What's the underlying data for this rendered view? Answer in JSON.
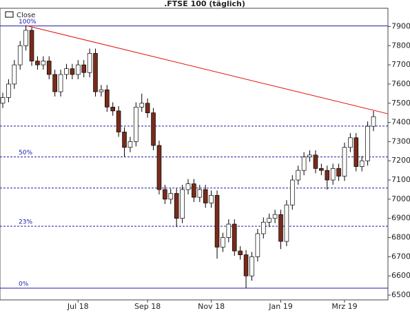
{
  "chart_data": {
    "type": "candlestick",
    "title": ".FTSE 100 (täglich)",
    "name": "Close",
    "categories": [
      null,
      null,
      null,
      null,
      null,
      null,
      null,
      null,
      null,
      null,
      null,
      null,
      null,
      "Jul 18",
      null,
      null,
      null,
      null,
      null,
      null,
      null,
      null,
      null,
      null,
      null,
      "Sep 18",
      null,
      null,
      null,
      null,
      null,
      null,
      null,
      null,
      null,
      null,
      "Nov 18",
      null,
      null,
      null,
      null,
      null,
      null,
      null,
      null,
      null,
      null,
      null,
      "Jan 19",
      null,
      null,
      null,
      null,
      null,
      null,
      null,
      null,
      null,
      null,
      "Mrz 19",
      null,
      null,
      null,
      null,
      null
    ],
    "open": [
      7500,
      7530,
      7600,
      7700,
      7800,
      7880,
      7720,
      7700,
      7720,
      7650,
      7560,
      7650,
      7680,
      7650,
      7700,
      7660,
      7760,
      7560,
      7570,
      7480,
      7460,
      7350,
      7270,
      7300,
      7480,
      7500,
      7450,
      7280,
      7050,
      7000,
      7030,
      6900,
      7050,
      7080,
      7010,
      7050,
      6980,
      7020,
      6750,
      6800,
      6870,
      6730,
      6710,
      6600,
      6700,
      6820,
      6880,
      6900,
      6920,
      6780,
      6970,
      7100,
      7150,
      7220,
      7230,
      7160,
      7150,
      7100,
      7160,
      7120,
      7270,
      7320,
      7170,
      7200,
      7380
    ],
    "high": [
      7555,
      7625,
      7725,
      7825,
      7905,
      7895,
      7745,
      7745,
      7745,
      7675,
      7675,
      7705,
      7705,
      7725,
      7725,
      7785,
      7785,
      7595,
      7595,
      7505,
      7485,
      7375,
      7325,
      7505,
      7550,
      7525,
      7475,
      7305,
      7075,
      7055,
      7055,
      7075,
      7105,
      7105,
      7075,
      7075,
      7045,
      7045,
      6825,
      6895,
      6895,
      6755,
      6735,
      6725,
      6845,
      6905,
      6925,
      6945,
      6945,
      6995,
      7125,
      7175,
      7245,
      7255,
      7255,
      7185,
      7175,
      7185,
      7185,
      7295,
      7345,
      7345,
      7225,
      7405,
      7460
    ],
    "low": [
      7475,
      7505,
      7575,
      7675,
      7775,
      7695,
      7675,
      7675,
      7625,
      7535,
      7535,
      7625,
      7625,
      7625,
      7635,
      7635,
      7535,
      7535,
      7455,
      7435,
      7325,
      7220,
      7245,
      7275,
      7455,
      7425,
      7255,
      7025,
      6975,
      6975,
      6855,
      6875,
      7025,
      6985,
      6985,
      6955,
      6955,
      6690,
      6725,
      6775,
      6705,
      6685,
      6536,
      6575,
      6675,
      6795,
      6855,
      6875,
      6740,
      6755,
      6945,
      7075,
      7125,
      7195,
      7135,
      7125,
      7050,
      7075,
      7095,
      7095,
      7245,
      7145,
      7145,
      7175,
      7355
    ],
    "close": [
      7530,
      7600,
      7700,
      7800,
      7880,
      7720,
      7700,
      7720,
      7650,
      7560,
      7650,
      7680,
      7650,
      7700,
      7660,
      7760,
      7560,
      7570,
      7480,
      7460,
      7350,
      7270,
      7300,
      7480,
      7500,
      7450,
      7280,
      7050,
      7000,
      7030,
      6900,
      7050,
      7080,
      7010,
      7050,
      6980,
      7020,
      6750,
      6800,
      6870,
      6730,
      6710,
      6600,
      6700,
      6820,
      6880,
      6900,
      6920,
      6780,
      6970,
      7100,
      7150,
      7220,
      7230,
      7160,
      7150,
      7100,
      7160,
      7120,
      7270,
      7320,
      7170,
      7200,
      7380,
      7430
    ],
    "up_color": "#ffffff",
    "down_color": "#7a2a1a",
    "ylim": [
      6475,
      7995
    ],
    "yticks": [
      6500,
      6600,
      6700,
      6800,
      6900,
      7000,
      7100,
      7200,
      7300,
      7400,
      7500,
      7600,
      7700,
      7800,
      7900
    ],
    "levels": [
      {
        "value": 7903,
        "label": "100%"
      },
      {
        "value": 7381
      },
      {
        "value": 7220,
        "label": "50%"
      },
      {
        "value": 7058
      },
      {
        "value": 6859,
        "label": "23%"
      },
      {
        "value": 6536,
        "label": "0%"
      }
    ],
    "level_color": "#1a1aa8",
    "trendline": {
      "values": [
        7905,
        7445
      ],
      "color": "#e01010"
    }
  }
}
